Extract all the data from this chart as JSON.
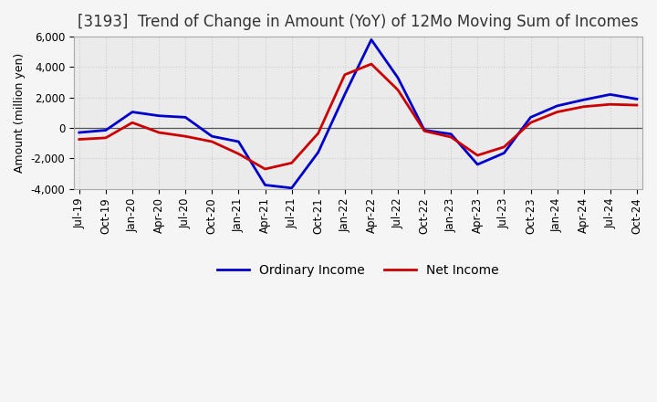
{
  "title": "[3193]  Trend of Change in Amount (YoY) of 12Mo Moving Sum of Incomes",
  "ylabel": "Amount (million yen)",
  "xlabels": [
    "Jul-19",
    "Oct-19",
    "Jan-20",
    "Apr-20",
    "Jul-20",
    "Oct-20",
    "Jan-21",
    "Apr-21",
    "Jul-21",
    "Oct-21",
    "Jan-22",
    "Apr-22",
    "Jul-22",
    "Oct-22",
    "Jan-23",
    "Apr-23",
    "Jul-23",
    "Oct-23",
    "Jan-24",
    "Apr-24",
    "Jul-24",
    "Oct-24"
  ],
  "ordinary_income": [
    -300,
    -150,
    1050,
    800,
    700,
    -550,
    -900,
    -3750,
    -3950,
    -1600,
    2200,
    5800,
    3300,
    -150,
    -400,
    -2400,
    -1650,
    700,
    1450,
    1850,
    2200,
    1900
  ],
  "net_income": [
    -750,
    -650,
    350,
    -300,
    -550,
    -900,
    -1700,
    -2700,
    -2300,
    -350,
    3500,
    4200,
    2500,
    -200,
    -600,
    -1800,
    -1250,
    350,
    1050,
    1400,
    1550,
    1500
  ],
  "ordinary_color": "#0000cc",
  "net_color": "#cc0000",
  "ylim": [
    -4000,
    6000
  ],
  "yticks": [
    -4000,
    -2000,
    0,
    2000,
    4000,
    6000
  ],
  "fig_background": "#f0f0f0",
  "plot_background": "#e8e8e8",
  "grid_color": "#bbbbbb",
  "line_width": 2.0,
  "legend_ordinary": "Ordinary Income",
  "legend_net": "Net Income",
  "title_fontsize": 12,
  "axis_fontsize": 9,
  "tick_fontsize": 8.5
}
